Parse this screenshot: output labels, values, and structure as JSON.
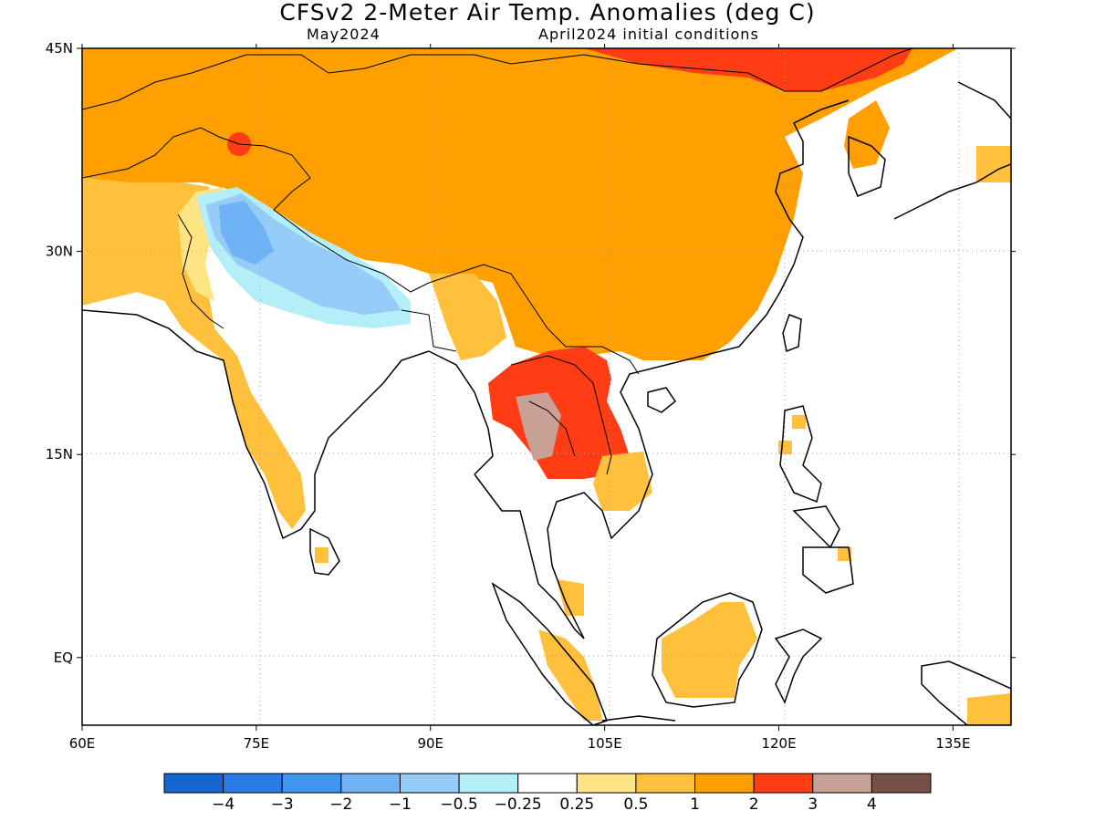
{
  "title": "CFSv2 2-Meter Air Temp. Anomalies (deg C)",
  "valid_month": "May2024",
  "initial_conditions": "April2024 initial conditions",
  "colors": {
    "ocean": "#ffffff",
    "frame": "#000000",
    "gridline": "#a0a0a0",
    "coastline": "#000000"
  },
  "map_data": {
    "projection": "cylindrical equidistant",
    "lon_range": [
      60,
      140
    ],
    "lat_range": [
      -5,
      45
    ],
    "lon_ticks": [
      {
        "value": 60,
        "label": "60E"
      },
      {
        "value": 75,
        "label": "75E"
      },
      {
        "value": 90,
        "label": "90E"
      },
      {
        "value": 105,
        "label": "105E"
      },
      {
        "value": 120,
        "label": "120E"
      },
      {
        "value": 135,
        "label": "135E"
      }
    ],
    "lat_ticks": [
      {
        "value": 45,
        "label": "45N"
      },
      {
        "value": 30,
        "label": "30N"
      },
      {
        "value": 15,
        "label": "15N"
      },
      {
        "value": 0,
        "label": "EQ"
      }
    ],
    "gridlines": "dotted",
    "region": "Asia (India, Southeast Asia, China)"
  },
  "colorbar": {
    "bins": [
      {
        "color": "#1565d2"
      },
      {
        "color": "#2a7be8"
      },
      {
        "color": "#3f96ef"
      },
      {
        "color": "#6fb3f6"
      },
      {
        "color": "#96cdf8"
      },
      {
        "color": "#b4eef8"
      },
      {
        "color": "#ffffff"
      },
      {
        "color": "#ffe484"
      },
      {
        "color": "#ffc03c"
      },
      {
        "color": "#ffa000"
      },
      {
        "color": "#ff3c14"
      },
      {
        "color": "#c8a096"
      },
      {
        "color": "#785046"
      }
    ],
    "labels": [
      "-4",
      "-3",
      "-2",
      "-1",
      "-0.5",
      "-0.25",
      "0.25",
      "0.5",
      "1",
      "2",
      "3",
      "4"
    ]
  },
  "anomaly_regions": [
    {
      "level": "1 to 2",
      "color": "#ffa000",
      "area": "China, Mongolia, Central Asia"
    },
    {
      "level": "2 to 3",
      "color": "#ff3c14",
      "area": "NE China, Indochina (Laos, Cambodia)"
    },
    {
      "level": "3 to 4",
      "color": "#c8a096",
      "area": "Myanmar / Thailand"
    },
    {
      "level": "-1 to -2",
      "color": "#6fb3f6",
      "area": "N India, Nepal"
    },
    {
      "level": "0.5 to 1",
      "color": "#ffc03c",
      "area": "W India, Pakistan, Borneo, Sumatra"
    }
  ]
}
